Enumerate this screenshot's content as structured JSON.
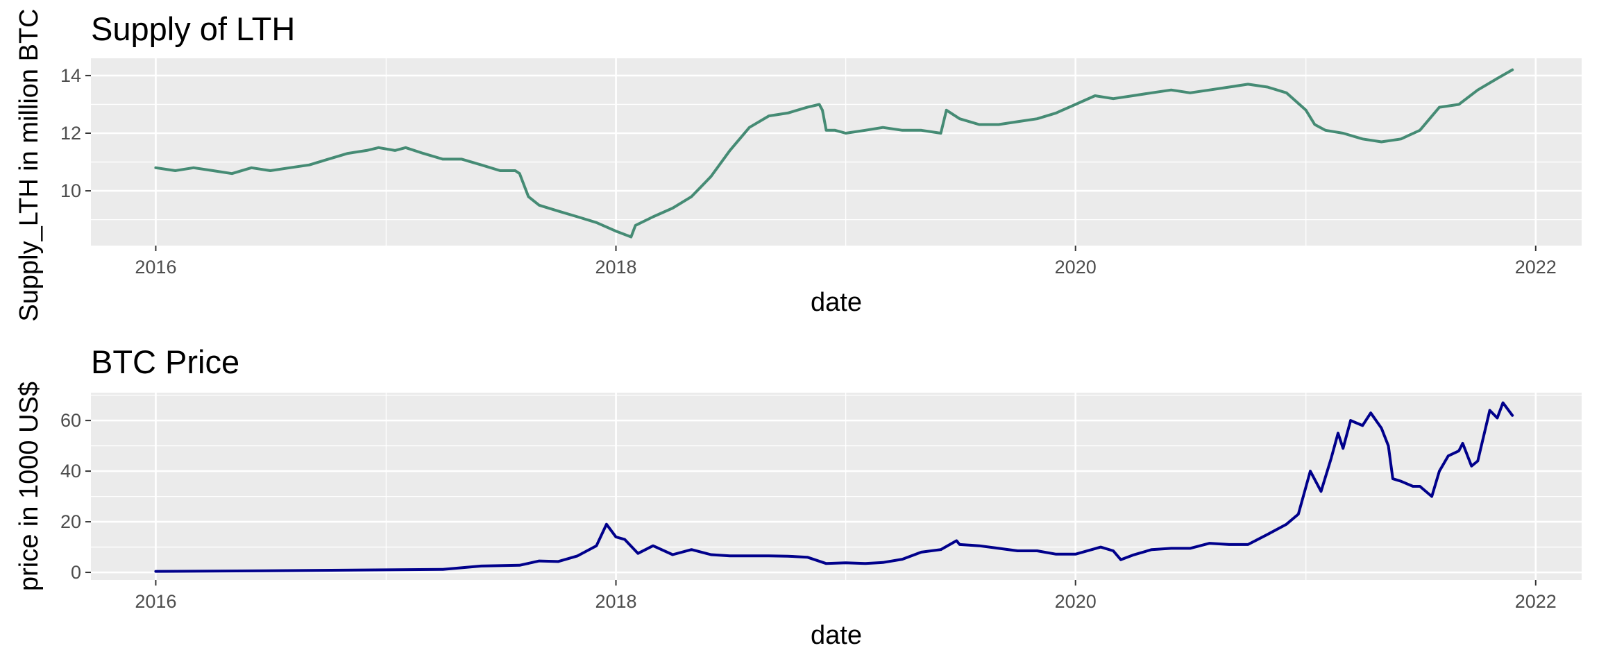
{
  "chart_data": [
    {
      "type": "line",
      "title": "Supply of LTH",
      "xlabel": "date",
      "ylabel": "Supply_LTH in million BTC",
      "x_ticks": [
        "2016",
        "2018",
        "2020",
        "2022"
      ],
      "y_ticks": [
        10,
        12,
        14
      ],
      "xlim": [
        "2015-09-20",
        "2022-03-15"
      ],
      "ylim": [
        8.1,
        14.6
      ],
      "grid": true,
      "legend": "none",
      "series": [
        {
          "color": "#458b74",
          "x": [
            "2016-01-01",
            "2016-02-01",
            "2016-03-01",
            "2016-04-01",
            "2016-05-01",
            "2016-06-01",
            "2016-07-01",
            "2016-08-01",
            "2016-09-01",
            "2016-10-01",
            "2016-11-01",
            "2016-12-01",
            "2016-12-20",
            "2017-01-15",
            "2017-02-01",
            "2017-03-01",
            "2017-04-01",
            "2017-05-01",
            "2017-06-01",
            "2017-07-01",
            "2017-07-25",
            "2017-08-01",
            "2017-08-15",
            "2017-09-01",
            "2017-10-01",
            "2017-11-01",
            "2017-12-01",
            "2018-01-01",
            "2018-01-25",
            "2018-02-01",
            "2018-03-01",
            "2018-04-01",
            "2018-05-01",
            "2018-06-01",
            "2018-07-01",
            "2018-08-01",
            "2018-09-01",
            "2018-10-01",
            "2018-11-01",
            "2018-11-20",
            "2018-11-25",
            "2018-12-01",
            "2018-12-15",
            "2019-01-01",
            "2019-02-01",
            "2019-03-01",
            "2019-04-01",
            "2019-05-01",
            "2019-06-01",
            "2019-06-10",
            "2019-07-01",
            "2019-08-01",
            "2019-09-01",
            "2019-10-01",
            "2019-11-01",
            "2019-12-01",
            "2020-01-01",
            "2020-02-01",
            "2020-03-01",
            "2020-04-01",
            "2020-05-01",
            "2020-06-01",
            "2020-07-01",
            "2020-08-01",
            "2020-09-01",
            "2020-10-01",
            "2020-11-01",
            "2020-12-01",
            "2021-01-01",
            "2021-01-15",
            "2021-02-01",
            "2021-03-01",
            "2021-04-01",
            "2021-05-01",
            "2021-06-01",
            "2021-07-01",
            "2021-08-01",
            "2021-09-01",
            "2021-10-01",
            "2021-11-01",
            "2021-11-25"
          ],
          "y": [
            10.8,
            10.7,
            10.8,
            10.7,
            10.6,
            10.8,
            10.7,
            10.8,
            10.9,
            11.1,
            11.3,
            11.4,
            11.5,
            11.4,
            11.5,
            11.3,
            11.1,
            11.1,
            10.9,
            10.7,
            10.7,
            10.6,
            9.8,
            9.5,
            9.3,
            9.1,
            8.9,
            8.6,
            8.4,
            8.8,
            9.1,
            9.4,
            9.8,
            10.5,
            11.4,
            12.2,
            12.6,
            12.7,
            12.9,
            13.0,
            12.8,
            12.1,
            12.1,
            12.0,
            12.1,
            12.2,
            12.1,
            12.1,
            12.0,
            12.8,
            12.5,
            12.3,
            12.3,
            12.4,
            12.5,
            12.7,
            13.0,
            13.3,
            13.2,
            13.3,
            13.4,
            13.5,
            13.4,
            13.5,
            13.6,
            13.7,
            13.6,
            13.4,
            12.8,
            12.3,
            12.1,
            12.0,
            11.8,
            11.7,
            11.8,
            12.1,
            12.9,
            13.0,
            13.5,
            13.9,
            14.2
          ]
        }
      ]
    },
    {
      "type": "line",
      "title": "BTC Price",
      "xlabel": "date",
      "ylabel": "price in 1000 US$",
      "x_ticks": [
        "2016",
        "2018",
        "2020",
        "2022"
      ],
      "y_ticks": [
        0,
        20,
        40,
        60
      ],
      "xlim": [
        "2015-09-20",
        "2022-03-15"
      ],
      "ylim": [
        -3,
        71
      ],
      "grid": true,
      "legend": "none",
      "series": [
        {
          "color": "#00008b",
          "x": [
            "2016-01-01",
            "2016-06-01",
            "2017-01-01",
            "2017-04-01",
            "2017-06-01",
            "2017-08-01",
            "2017-09-01",
            "2017-10-01",
            "2017-11-01",
            "2017-12-01",
            "2017-12-17",
            "2018-01-01",
            "2018-01-15",
            "2018-02-05",
            "2018-03-01",
            "2018-04-01",
            "2018-05-01",
            "2018-06-01",
            "2018-07-01",
            "2018-08-01",
            "2018-09-01",
            "2018-10-01",
            "2018-11-01",
            "2018-12-01",
            "2019-01-01",
            "2019-02-01",
            "2019-03-01",
            "2019-04-01",
            "2019-05-01",
            "2019-06-01",
            "2019-06-26",
            "2019-07-01",
            "2019-08-01",
            "2019-09-01",
            "2019-10-01",
            "2019-11-01",
            "2019-12-01",
            "2020-01-01",
            "2020-02-10",
            "2020-03-01",
            "2020-03-13",
            "2020-04-01",
            "2020-05-01",
            "2020-06-01",
            "2020-07-01",
            "2020-08-01",
            "2020-09-01",
            "2020-10-01",
            "2020-11-01",
            "2020-12-01",
            "2020-12-20",
            "2021-01-08",
            "2021-01-25",
            "2021-02-10",
            "2021-02-21",
            "2021-03-01",
            "2021-03-13",
            "2021-04-01",
            "2021-04-14",
            "2021-05-01",
            "2021-05-12",
            "2021-05-19",
            "2021-06-01",
            "2021-06-20",
            "2021-07-01",
            "2021-07-20",
            "2021-08-01",
            "2021-08-15",
            "2021-09-01",
            "2021-09-07",
            "2021-09-21",
            "2021-10-01",
            "2021-10-20",
            "2021-11-01",
            "2021-11-10",
            "2021-11-25"
          ],
          "y": [
            0.4,
            0.6,
            1.0,
            1.2,
            2.5,
            2.8,
            4.5,
            4.3,
            6.5,
            10.5,
            19.0,
            14.0,
            13.0,
            7.5,
            10.5,
            7.0,
            9.0,
            7.0,
            6.5,
            6.5,
            6.5,
            6.4,
            6.0,
            3.5,
            3.8,
            3.5,
            3.9,
            5.2,
            8.0,
            9.0,
            12.5,
            11.0,
            10.5,
            9.5,
            8.5,
            8.5,
            7.2,
            7.2,
            10.0,
            8.5,
            5.0,
            6.8,
            9.0,
            9.5,
            9.5,
            11.5,
            11.0,
            11.0,
            15.0,
            19.0,
            23.0,
            40.0,
            32.0,
            45.0,
            55.0,
            49.0,
            60.0,
            58.0,
            63.0,
            57.0,
            50.0,
            37.0,
            36.0,
            34.0,
            34.0,
            30.0,
            40.0,
            46.0,
            48.0,
            51.0,
            42.0,
            44.0,
            64.0,
            61.0,
            67.0,
            62.0
          ]
        }
      ]
    }
  ]
}
